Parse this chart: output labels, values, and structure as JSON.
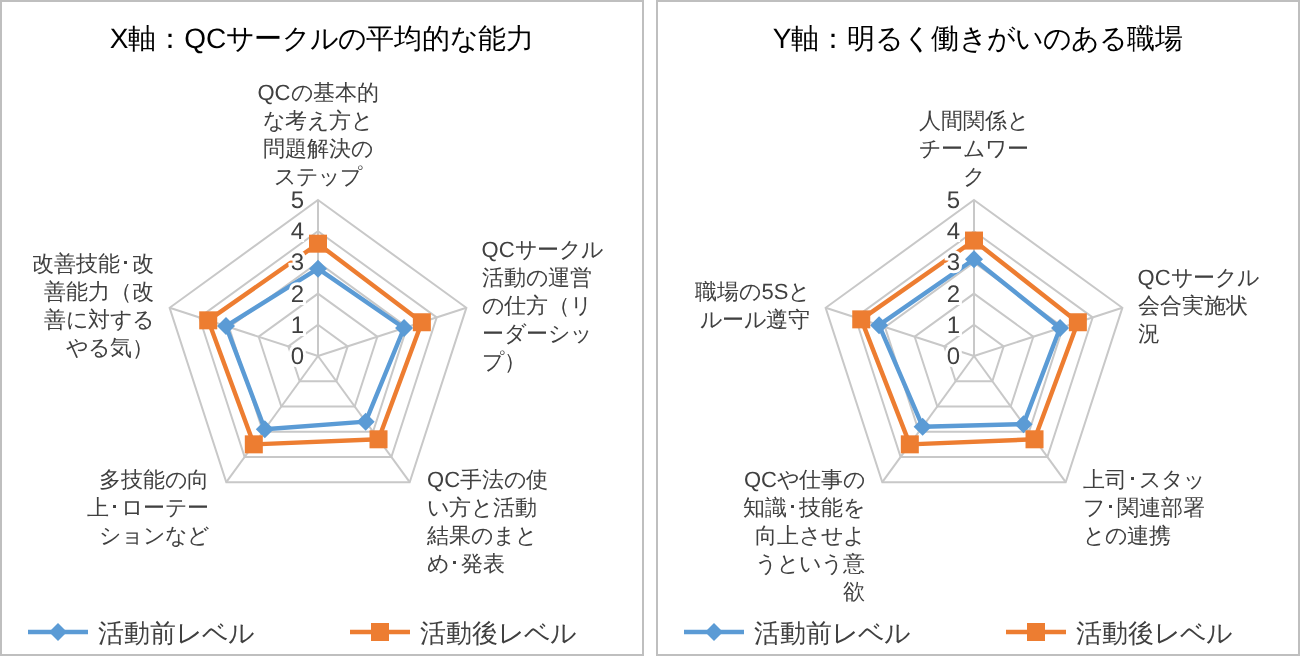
{
  "chart_data": [
    {
      "type": "radar",
      "title": "X軸：QCサークルの平均的な能力",
      "categories": [
        "QCの基本的な考え方と問題解決のステップ",
        "QCサークル活動の運営の仕方（リーダーシップ）",
        "QC手法の使い方と活動結果のまとめ･発表",
        "多技能の向上･ローテーションなど",
        "改善技能･改善能力（改善に対するやる気）"
      ],
      "ylim": [
        0,
        5
      ],
      "yticks": [
        0,
        1,
        2,
        3,
        4,
        5
      ],
      "legend": "bottom",
      "series": [
        {
          "name": "活動前レベル",
          "color": "#5b9bd5",
          "marker": "diamond",
          "values": [
            2.8,
            2.9,
            2.6,
            2.9,
            3.1
          ]
        },
        {
          "name": "活動後レベル",
          "color": "#ed7d31",
          "marker": "square",
          "values": [
            3.6,
            3.5,
            3.3,
            3.5,
            3.7
          ]
        }
      ]
    },
    {
      "type": "radar",
      "title": "Y軸：明るく働きがいのある職場",
      "categories": [
        "人間関係とチームワーク",
        "QCサークル会合実施状況",
        "上司･スタッフ･関連部署との連携",
        "QCや仕事の知識･技能を向上させようという意欲",
        "職場の5Sとルール遵守"
      ],
      "ylim": [
        0,
        5
      ],
      "yticks": [
        0,
        1,
        2,
        3,
        4,
        5
      ],
      "legend": "bottom",
      "series": [
        {
          "name": "活動前レベル",
          "color": "#5b9bd5",
          "marker": "diamond",
          "values": [
            3.1,
            2.9,
            2.7,
            2.8,
            3.2
          ]
        },
        {
          "name": "活動後レベル",
          "color": "#ed7d31",
          "marker": "square",
          "values": [
            3.7,
            3.5,
            3.3,
            3.5,
            3.8
          ]
        }
      ]
    }
  ]
}
